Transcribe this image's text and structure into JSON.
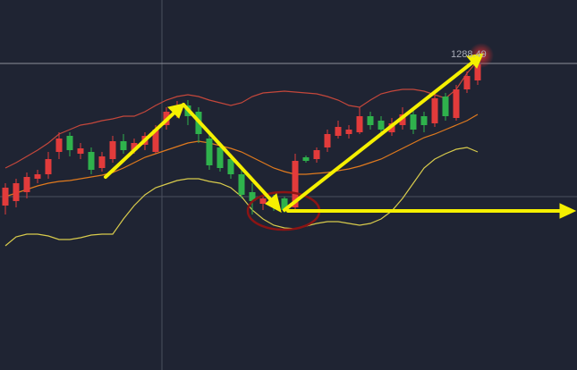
{
  "chart_data": {
    "type": "candlestick",
    "ylim": [
      1253.3,
      1294.7
    ],
    "up_color": "#e23b3b",
    "down_color": "#2fb24c",
    "open": [
      1271.7,
      1272.2,
      1273.2,
      1274.7,
      1275.2,
      1277.7,
      1279.5,
      1277.5,
      1277.7,
      1275.9,
      1276.9,
      1278.9,
      1277.9,
      1278.5,
      1277.7,
      1280.7,
      1281.9,
      1282.9,
      1282.2,
      1279.2,
      1278.2,
      1276.9,
      1275.2,
      1273.2,
      1271.9,
      1272.5,
      1272.5,
      1271.5,
      1277.1,
      1276.9,
      1278.2,
      1279.5,
      1279.7,
      1279.9,
      1281.7,
      1281.2,
      1279.9,
      1280.7,
      1281.9,
      1281.7,
      1280.9,
      1283.9,
      1281.5,
      1284.7,
      1285.7
    ],
    "high": [
      1274.2,
      1274.7,
      1275.4,
      1275.7,
      1277.7,
      1279.9,
      1279.9,
      1278.7,
      1278.2,
      1277.7,
      1279.5,
      1279.7,
      1279.2,
      1279.9,
      1280.7,
      1282.7,
      1283.4,
      1283.5,
      1282.7,
      1279.7,
      1278.7,
      1277.5,
      1275.7,
      1274.2,
      1272.9,
      1272.9,
      1272.7,
      1277.5,
      1277.3,
      1278.2,
      1280.2,
      1281.2,
      1280.7,
      1282.7,
      1282.2,
      1281.7,
      1281.5,
      1282.7,
      1282.5,
      1282.2,
      1284.2,
      1284.3,
      1285.2,
      1286.7,
      1288.49
    ],
    "low": [
      1270.7,
      1271.5,
      1272.5,
      1274.2,
      1274.7,
      1276.9,
      1277.2,
      1276.9,
      1275.2,
      1275.5,
      1276.5,
      1277.5,
      1277.5,
      1277.9,
      1277.5,
      1280.2,
      1281.5,
      1280.7,
      1278.7,
      1275.7,
      1275.5,
      1274.7,
      1272.5,
      1270.7,
      1271.2,
      1271.1,
      1270.9,
      1271.1,
      1276.5,
      1276.5,
      1277.7,
      1279.2,
      1279.2,
      1279.7,
      1280.2,
      1279.7,
      1279.5,
      1280.2,
      1279.7,
      1279.9,
      1280.5,
      1281.2,
      1281.2,
      1284.3,
      1285.2
    ],
    "close": [
      1273.7,
      1274.2,
      1274.9,
      1275.2,
      1276.9,
      1279.2,
      1277.9,
      1278.1,
      1275.7,
      1277.2,
      1278.9,
      1277.9,
      1278.7,
      1279.5,
      1280.2,
      1282.2,
      1282.9,
      1281.7,
      1279.7,
      1276.2,
      1275.9,
      1275.2,
      1272.9,
      1272.2,
      1272.5,
      1271.7,
      1271.2,
      1276.7,
      1276.7,
      1277.9,
      1279.7,
      1280.5,
      1280.2,
      1281.7,
      1280.7,
      1280.2,
      1280.9,
      1281.9,
      1280.2,
      1280.7,
      1283.7,
      1281.7,
      1284.7,
      1286.2,
      1287.5
    ],
    "bands": [
      {
        "color": "#c4473b",
        "values": [
          1275.9,
          1276.5,
          1277.2,
          1277.9,
          1278.7,
          1279.7,
          1280.2,
          1280.7,
          1280.9,
          1281.2,
          1281.4,
          1281.7,
          1281.7,
          1282.2,
          1282.9,
          1283.5,
          1283.9,
          1284.1,
          1283.9,
          1283.5,
          1283.2,
          1282.9,
          1283.2,
          1283.9,
          1284.3,
          1284.4,
          1284.5,
          1284.4,
          1284.3,
          1284.2,
          1283.9,
          1283.5,
          1282.9,
          1282.7,
          1283.5,
          1284.2,
          1284.5,
          1284.7,
          1284.7,
          1284.5,
          1284.1,
          1283.7,
          1284.7,
          1286.5,
          1287.9
        ]
      },
      {
        "color": "#e07a1e",
        "values": [
          1272.7,
          1273.1,
          1273.5,
          1273.9,
          1274.2,
          1274.4,
          1274.5,
          1274.7,
          1274.9,
          1275.1,
          1275.4,
          1275.9,
          1276.5,
          1277.1,
          1277.5,
          1277.9,
          1278.3,
          1278.7,
          1278.9,
          1278.7,
          1278.4,
          1278.1,
          1277.7,
          1277.1,
          1276.5,
          1275.9,
          1275.5,
          1275.2,
          1275.2,
          1275.3,
          1275.4,
          1275.6,
          1275.8,
          1276.1,
          1276.5,
          1276.9,
          1277.5,
          1278.1,
          1278.7,
          1279.3,
          1279.7,
          1280.2,
          1280.7,
          1281.2,
          1281.9
        ]
      },
      {
        "color": "#d8cb4c",
        "values": [
          1267.2,
          1268.2,
          1268.5,
          1268.5,
          1268.3,
          1267.9,
          1267.9,
          1268.1,
          1268.4,
          1268.5,
          1268.5,
          1270.2,
          1271.7,
          1272.9,
          1273.7,
          1274.1,
          1274.5,
          1274.7,
          1274.7,
          1274.4,
          1274.2,
          1273.7,
          1272.7,
          1271.2,
          1270.2,
          1269.5,
          1269.2,
          1269.1,
          1269.4,
          1269.7,
          1269.9,
          1269.9,
          1269.7,
          1269.5,
          1269.7,
          1270.2,
          1271.1,
          1272.5,
          1274.2,
          1275.9,
          1276.9,
          1277.5,
          1278,
          1278.2,
          1277.7
        ]
      }
    ]
  }
}
